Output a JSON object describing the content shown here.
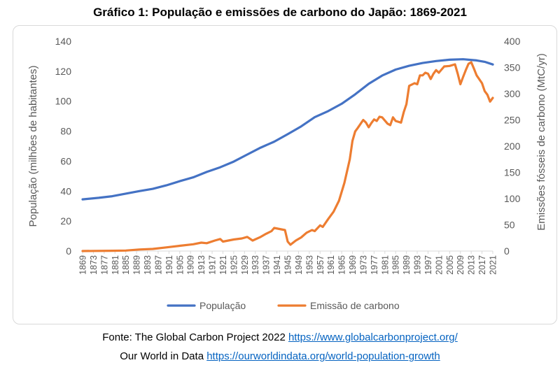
{
  "title": "Gráfico 1: População e emissões de carbono do Japão: 1869-2021",
  "footer": {
    "line1_text": "Fonte: The Global Carbon Project 2022 ",
    "line1_link": "https://www.globalcarbonproject.org/",
    "line2_text": "Our World in Data ",
    "line2_link": "https://ourworldindata.org/world-population-growth"
  },
  "colors": {
    "population": "#4472c4",
    "emissions": "#ed7d31",
    "axis": "#d9d9d9",
    "text": "#595959"
  },
  "chart_data": {
    "type": "line",
    "grid": false,
    "legend_position": "bottom",
    "x_range": [
      1869,
      2021
    ],
    "x_tick_step": 4,
    "y_left": {
      "label": "População (milhões de habitantes)",
      "range": [
        0,
        140
      ],
      "ticks": [
        0,
        20,
        40,
        60,
        80,
        100,
        120,
        140
      ]
    },
    "y_right": {
      "label": "Emissões fósseis de carbono (MtC/yr)",
      "range": [
        0,
        400
      ],
      "ticks": [
        0,
        50,
        100,
        150,
        200,
        250,
        300,
        350,
        400
      ]
    },
    "series": [
      {
        "name": "População",
        "axis": "left",
        "points": [
          [
            1869,
            34.5
          ],
          [
            1875,
            35.5
          ],
          [
            1880,
            36.6
          ],
          [
            1885,
            38.3
          ],
          [
            1890,
            40.0
          ],
          [
            1895,
            41.5
          ],
          [
            1900,
            43.8
          ],
          [
            1905,
            46.6
          ],
          [
            1910,
            49.2
          ],
          [
            1915,
            52.8
          ],
          [
            1920,
            55.9
          ],
          [
            1925,
            59.7
          ],
          [
            1930,
            64.4
          ],
          [
            1935,
            69.0
          ],
          [
            1940,
            73.0
          ],
          [
            1945,
            78.0
          ],
          [
            1950,
            83.2
          ],
          [
            1955,
            89.3
          ],
          [
            1960,
            93.4
          ],
          [
            1965,
            98.3
          ],
          [
            1970,
            104.6
          ],
          [
            1975,
            111.6
          ],
          [
            1980,
            117.1
          ],
          [
            1985,
            121.1
          ],
          [
            1990,
            123.6
          ],
          [
            1995,
            125.5
          ],
          [
            2000,
            126.8
          ],
          [
            2005,
            127.7
          ],
          [
            2010,
            128.0
          ],
          [
            2015,
            127.2
          ],
          [
            2018,
            126.3
          ],
          [
            2021,
            124.5
          ]
        ]
      },
      {
        "name": "Emissão de carbono",
        "axis": "right",
        "points": [
          [
            1869,
            0
          ],
          [
            1880,
            0.5
          ],
          [
            1885,
            1
          ],
          [
            1890,
            3
          ],
          [
            1895,
            4
          ],
          [
            1900,
            7
          ],
          [
            1905,
            10
          ],
          [
            1910,
            13
          ],
          [
            1913,
            16
          ],
          [
            1915,
            15
          ],
          [
            1918,
            20
          ],
          [
            1920,
            23
          ],
          [
            1921,
            18
          ],
          [
            1925,
            22
          ],
          [
            1928,
            24
          ],
          [
            1930,
            27
          ],
          [
            1932,
            20
          ],
          [
            1935,
            27
          ],
          [
            1937,
            33
          ],
          [
            1939,
            38
          ],
          [
            1940,
            44
          ],
          [
            1942,
            42
          ],
          [
            1944,
            40
          ],
          [
            1945,
            18
          ],
          [
            1946,
            12
          ],
          [
            1948,
            20
          ],
          [
            1950,
            26
          ],
          [
            1952,
            35
          ],
          [
            1954,
            40
          ],
          [
            1955,
            38
          ],
          [
            1957,
            49
          ],
          [
            1958,
            46
          ],
          [
            1960,
            61
          ],
          [
            1962,
            75
          ],
          [
            1964,
            96
          ],
          [
            1966,
            130
          ],
          [
            1968,
            175
          ],
          [
            1969,
            210
          ],
          [
            1970,
            228
          ],
          [
            1971,
            235
          ],
          [
            1973,
            250
          ],
          [
            1974,
            245
          ],
          [
            1975,
            236
          ],
          [
            1976,
            244
          ],
          [
            1977,
            251
          ],
          [
            1978,
            248
          ],
          [
            1979,
            256
          ],
          [
            1980,
            255
          ],
          [
            1982,
            243
          ],
          [
            1983,
            240
          ],
          [
            1984,
            255
          ],
          [
            1985,
            248
          ],
          [
            1987,
            245
          ],
          [
            1988,
            265
          ],
          [
            1989,
            280
          ],
          [
            1990,
            315
          ],
          [
            1992,
            320
          ],
          [
            1993,
            318
          ],
          [
            1994,
            335
          ],
          [
            1995,
            335
          ],
          [
            1996,
            340
          ],
          [
            1997,
            338
          ],
          [
            1998,
            328
          ],
          [
            1999,
            338
          ],
          [
            2000,
            345
          ],
          [
            2001,
            340
          ],
          [
            2003,
            352
          ],
          [
            2005,
            353
          ],
          [
            2007,
            356
          ],
          [
            2008,
            338
          ],
          [
            2009,
            318
          ],
          [
            2010,
            332
          ],
          [
            2011,
            345
          ],
          [
            2012,
            357
          ],
          [
            2013,
            360
          ],
          [
            2014,
            348
          ],
          [
            2015,
            335
          ],
          [
            2017,
            320
          ],
          [
            2018,
            305
          ],
          [
            2019,
            298
          ],
          [
            2020,
            285
          ],
          [
            2021,
            292
          ]
        ]
      }
    ]
  }
}
